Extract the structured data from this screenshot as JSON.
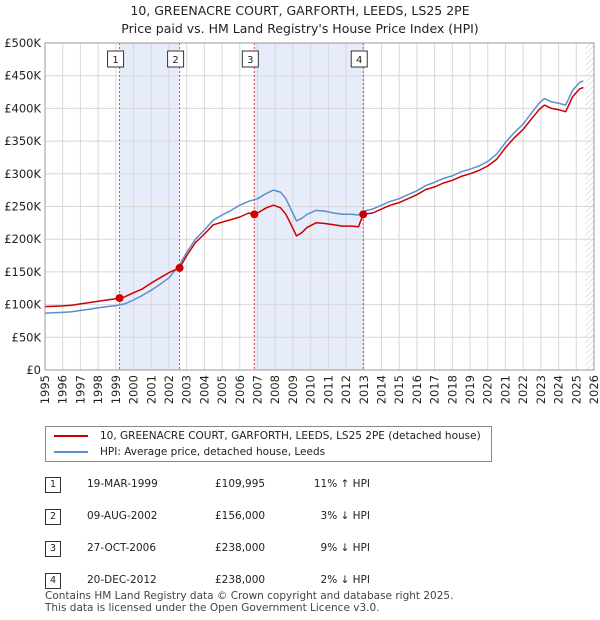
{
  "chart_data": {
    "type": "line",
    "title": "10, GREENACRE COURT, GARFORTH, LEEDS, LS25 2PE",
    "subtitle": "Price paid vs. HM Land Registry's House Price Index (HPI)",
    "xlim": [
      1995,
      2026
    ],
    "ylim": [
      0,
      500000
    ],
    "x_ticks": [
      "1995",
      "1996",
      "1997",
      "1998",
      "1999",
      "2000",
      "2001",
      "2002",
      "2003",
      "2004",
      "2005",
      "2006",
      "2007",
      "2008",
      "2009",
      "2010",
      "2011",
      "2012",
      "2013",
      "2014",
      "2015",
      "2016",
      "2017",
      "2018",
      "2019",
      "2020",
      "2021",
      "2022",
      "2023",
      "2024",
      "2025",
      "2026"
    ],
    "y_ticks": [
      {
        "value": 0,
        "label": "£0"
      },
      {
        "value": 50000,
        "label": "£50K"
      },
      {
        "value": 100000,
        "label": "£100K"
      },
      {
        "value": 150000,
        "label": "£150K"
      },
      {
        "value": 200000,
        "label": "£200K"
      },
      {
        "value": 250000,
        "label": "£250K"
      },
      {
        "value": 300000,
        "label": "£300K"
      },
      {
        "value": 350000,
        "label": "£350K"
      },
      {
        "value": 400000,
        "label": "£400K"
      },
      {
        "value": 450000,
        "label": "£450K"
      },
      {
        "value": 500000,
        "label": "£500K"
      }
    ],
    "series": [
      {
        "name": "10, GREENACRE COURT, GARFORTH, LEEDS, LS25 2PE (detached house)",
        "color": "#cc0000",
        "points": [
          [
            1995.0,
            97000
          ],
          [
            1995.5,
            97500
          ],
          [
            1996.0,
            98000
          ],
          [
            1996.5,
            99000
          ],
          [
            1997.0,
            101000
          ],
          [
            1997.5,
            103000
          ],
          [
            1998.0,
            105000
          ],
          [
            1998.5,
            107000
          ],
          [
            1999.0,
            109000
          ],
          [
            1999.21,
            109995
          ],
          [
            1999.5,
            112000
          ],
          [
            2000.0,
            118000
          ],
          [
            2000.5,
            124000
          ],
          [
            2001.0,
            133000
          ],
          [
            2001.5,
            141000
          ],
          [
            2002.0,
            149000
          ],
          [
            2002.6,
            156000
          ],
          [
            2003.0,
            175000
          ],
          [
            2003.5,
            195000
          ],
          [
            2004.0,
            208000
          ],
          [
            2004.5,
            222000
          ],
          [
            2005.0,
            226000
          ],
          [
            2005.5,
            230000
          ],
          [
            2006.0,
            234000
          ],
          [
            2006.5,
            240000
          ],
          [
            2006.82,
            238000
          ],
          [
            2007.0,
            240000
          ],
          [
            2007.5,
            248000
          ],
          [
            2007.9,
            252000
          ],
          [
            2008.3,
            248000
          ],
          [
            2008.6,
            238000
          ],
          [
            2008.9,
            222000
          ],
          [
            2009.2,
            205000
          ],
          [
            2009.5,
            210000
          ],
          [
            2009.8,
            218000
          ],
          [
            2010.3,
            225000
          ],
          [
            2010.8,
            224000
          ],
          [
            2011.3,
            222000
          ],
          [
            2011.8,
            220000
          ],
          [
            2012.3,
            220000
          ],
          [
            2012.7,
            219000
          ],
          [
            2012.97,
            238000
          ],
          [
            2013.5,
            240000
          ],
          [
            2014.0,
            246000
          ],
          [
            2014.5,
            252000
          ],
          [
            2015.0,
            256000
          ],
          [
            2015.5,
            262000
          ],
          [
            2016.0,
            268000
          ],
          [
            2016.5,
            276000
          ],
          [
            2017.0,
            280000
          ],
          [
            2017.5,
            286000
          ],
          [
            2018.0,
            290000
          ],
          [
            2018.5,
            296000
          ],
          [
            2019.0,
            300000
          ],
          [
            2019.5,
            305000
          ],
          [
            2020.0,
            312000
          ],
          [
            2020.5,
            322000
          ],
          [
            2021.0,
            340000
          ],
          [
            2021.5,
            355000
          ],
          [
            2022.0,
            368000
          ],
          [
            2022.5,
            385000
          ],
          [
            2022.9,
            398000
          ],
          [
            2023.2,
            405000
          ],
          [
            2023.6,
            400000
          ],
          [
            2024.0,
            398000
          ],
          [
            2024.4,
            395000
          ],
          [
            2024.8,
            418000
          ],
          [
            2025.2,
            430000
          ],
          [
            2025.4,
            432000
          ]
        ]
      },
      {
        "name": "HPI: Average price, detached house, Leeds",
        "color": "#5b8fce",
        "points": [
          [
            1995.0,
            87000
          ],
          [
            1995.5,
            87500
          ],
          [
            1996.0,
            88000
          ],
          [
            1996.5,
            89000
          ],
          [
            1997.0,
            91000
          ],
          [
            1997.5,
            93000
          ],
          [
            1998.0,
            95000
          ],
          [
            1998.5,
            97000
          ],
          [
            1999.0,
            98500
          ],
          [
            1999.5,
            101000
          ],
          [
            2000.0,
            107000
          ],
          [
            2000.5,
            114000
          ],
          [
            2001.0,
            122000
          ],
          [
            2001.5,
            131000
          ],
          [
            2002.0,
            141000
          ],
          [
            2002.6,
            161000
          ],
          [
            2003.0,
            180000
          ],
          [
            2003.5,
            200000
          ],
          [
            2004.0,
            214000
          ],
          [
            2004.5,
            229000
          ],
          [
            2005.0,
            237000
          ],
          [
            2005.5,
            244000
          ],
          [
            2006.0,
            252000
          ],
          [
            2006.5,
            258000
          ],
          [
            2007.0,
            262000
          ],
          [
            2007.5,
            270000
          ],
          [
            2007.9,
            275000
          ],
          [
            2008.3,
            272000
          ],
          [
            2008.6,
            262000
          ],
          [
            2008.9,
            245000
          ],
          [
            2009.2,
            228000
          ],
          [
            2009.5,
            232000
          ],
          [
            2009.8,
            238000
          ],
          [
            2010.3,
            244000
          ],
          [
            2010.8,
            243000
          ],
          [
            2011.3,
            240000
          ],
          [
            2011.8,
            238000
          ],
          [
            2012.3,
            238000
          ],
          [
            2012.7,
            237000
          ],
          [
            2013.0,
            243000
          ],
          [
            2013.5,
            246000
          ],
          [
            2014.0,
            252000
          ],
          [
            2014.5,
            258000
          ],
          [
            2015.0,
            262000
          ],
          [
            2015.5,
            268000
          ],
          [
            2016.0,
            274000
          ],
          [
            2016.5,
            282000
          ],
          [
            2017.0,
            287000
          ],
          [
            2017.5,
            293000
          ],
          [
            2018.0,
            297000
          ],
          [
            2018.5,
            303000
          ],
          [
            2019.0,
            307000
          ],
          [
            2019.5,
            312000
          ],
          [
            2020.0,
            319000
          ],
          [
            2020.5,
            330000
          ],
          [
            2021.0,
            348000
          ],
          [
            2021.5,
            363000
          ],
          [
            2022.0,
            376000
          ],
          [
            2022.5,
            394000
          ],
          [
            2022.9,
            408000
          ],
          [
            2023.2,
            415000
          ],
          [
            2023.6,
            410000
          ],
          [
            2024.0,
            408000
          ],
          [
            2024.4,
            405000
          ],
          [
            2024.8,
            428000
          ],
          [
            2025.2,
            440000
          ],
          [
            2025.4,
            442000
          ]
        ]
      }
    ],
    "sales": [
      {
        "label": "1",
        "x": 1999.21,
        "y": 109995
      },
      {
        "label": "2",
        "x": 2002.6,
        "y": 156000
      },
      {
        "label": "3",
        "x": 2006.82,
        "y": 238000
      },
      {
        "label": "4",
        "x": 2012.97,
        "y": 238000
      }
    ],
    "projection_start": 2025.5
  },
  "legend": {
    "property_label": "10, GREENACRE COURT, GARFORTH, LEEDS, LS25 2PE (detached house)",
    "hpi_label": "HPI: Average price, detached house, Leeds"
  },
  "sales_table": [
    {
      "num": "1",
      "date": "19-MAR-1999",
      "price": "£109,995",
      "hpi": "11% ↑ HPI"
    },
    {
      "num": "2",
      "date": "09-AUG-2002",
      "price": "£156,000",
      "hpi": "3% ↓ HPI"
    },
    {
      "num": "3",
      "date": "27-OCT-2006",
      "price": "£238,000",
      "hpi": "9% ↓ HPI"
    },
    {
      "num": "4",
      "date": "20-DEC-2012",
      "price": "£238,000",
      "hpi": "2% ↓ HPI"
    }
  ],
  "footer": {
    "line1": "Contains HM Land Registry data © Crown copyright and database right 2025.",
    "line2": "This data is licensed under the Open Government Licence v3.0."
  }
}
